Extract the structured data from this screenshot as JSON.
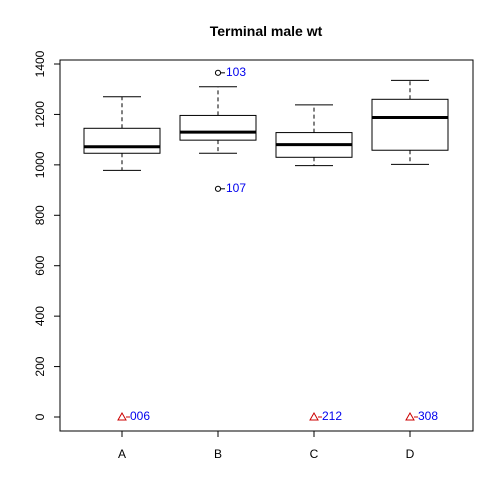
{
  "chart_data": {
    "type": "boxplot",
    "title": "Terminal male wt",
    "xlabel": "",
    "ylabel": "",
    "ylim": [
      -60,
      1420
    ],
    "y_ticks": [
      0,
      200,
      400,
      600,
      800,
      1000,
      1200,
      1400
    ],
    "y_tick_labels": [
      "0",
      "200",
      "400",
      "600",
      "800",
      "1000",
      "1200",
      "1400"
    ],
    "categories": [
      "A",
      "B",
      "C",
      "D"
    ],
    "boxes": [
      {
        "category": "A",
        "whisker_low": 978,
        "q1": 1046,
        "median": 1072,
        "q3": 1145,
        "whisker_high": 1270
      },
      {
        "category": "B",
        "whisker_low": 1046,
        "q1": 1098,
        "median": 1130,
        "q3": 1196,
        "whisker_high": 1310
      },
      {
        "category": "C",
        "whisker_low": 997,
        "q1": 1030,
        "median": 1080,
        "q3": 1128,
        "whisker_high": 1238
      },
      {
        "category": "D",
        "whisker_low": 1002,
        "q1": 1058,
        "median": 1188,
        "q3": 1260,
        "whisker_high": 1335
      }
    ],
    "outliers": [
      {
        "category": "B",
        "value": 1365,
        "label": "103"
      },
      {
        "category": "B",
        "value": 905,
        "label": "107"
      }
    ],
    "zero_markers": [
      {
        "category": "A",
        "value": 0,
        "label": "006"
      },
      {
        "category": "C",
        "value": 0,
        "label": "212"
      },
      {
        "category": "D",
        "value": 0,
        "label": "308"
      }
    ],
    "colors": {
      "box": "#000000",
      "label": "#0000ee",
      "marker": "#cc0000"
    },
    "grid": false
  }
}
